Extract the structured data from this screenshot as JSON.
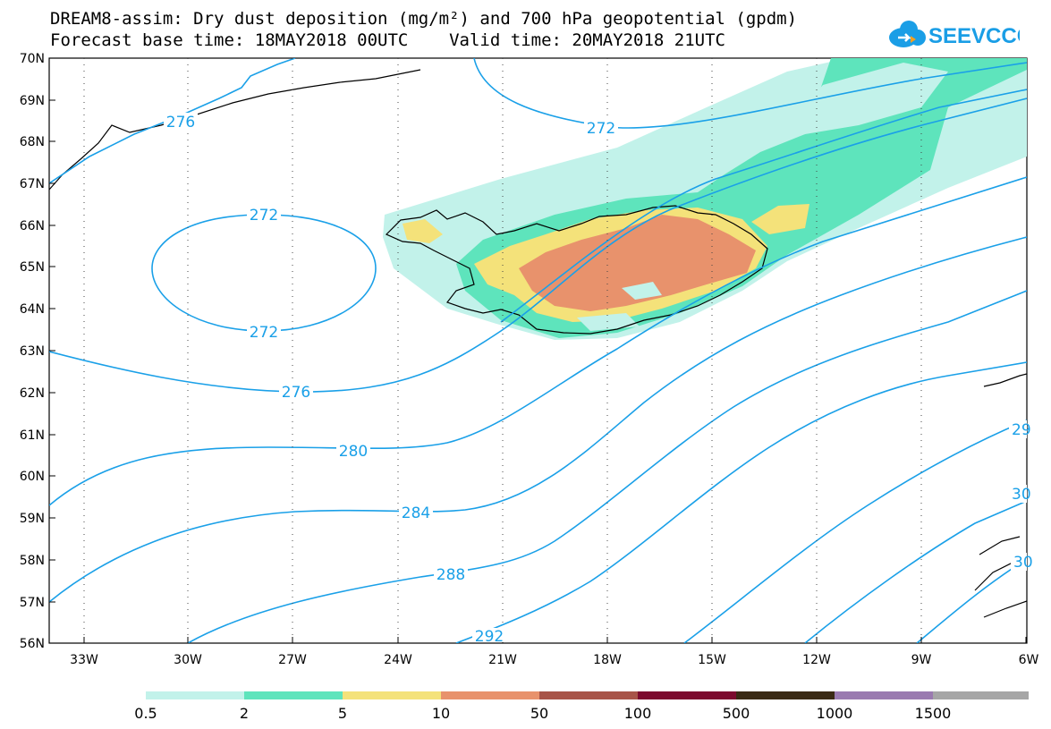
{
  "title": {
    "line1": "DREAM8-assim: Dry dust deposition (mg/m²) and 700 hPa geopotential (gpdm)",
    "line2": "Forecast base time: 18MAY2018 00UTC    Valid time: 20MAY2018 21UTC"
  },
  "logo": {
    "text": "SEEVCCC",
    "icon": "cloud-icon",
    "color": "#1a9ee6"
  },
  "axes": {
    "lat_labels": [
      "70N",
      "69N",
      "68N",
      "67N",
      "66N",
      "65N",
      "64N",
      "63N",
      "62N",
      "61N",
      "60N",
      "59N",
      "58N",
      "57N",
      "56N"
    ],
    "lon_labels": [
      "33W",
      "30W",
      "27W",
      "24W",
      "21W",
      "18W",
      "15W",
      "12W",
      "9W",
      "6W"
    ]
  },
  "contours": {
    "color": "#1aa0e8",
    "labels": [
      "276",
      "272",
      "272",
      "272",
      "276",
      "280",
      "284",
      "288",
      "292",
      "29",
      "30",
      "30"
    ]
  },
  "colorbar": {
    "labels": [
      "0.5",
      "2",
      "5",
      "10",
      "50",
      "100",
      "500",
      "1000",
      "1500"
    ],
    "colors": [
      "#c2f2ea",
      "#5ee4bc",
      "#f4e27a",
      "#e8926c",
      "#a85448",
      "#7c0a2e",
      "#3a2a14",
      "#9a7ab0",
      "#a6a6a6"
    ]
  }
}
